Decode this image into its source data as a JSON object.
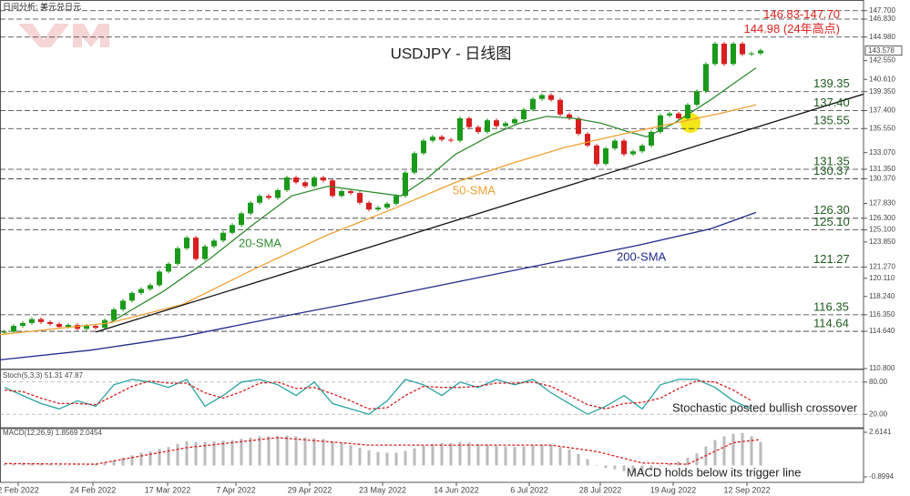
{
  "header": "日间分析: 美元兑日元",
  "chart_data": [
    {
      "type": "candlestick",
      "title": "USDJPY - 日线图",
      "xlim": [
        -0.5,
        94.3
      ],
      "xticks": [
        {
          "value": 1.5,
          "label": "2 Feb 2022"
        },
        {
          "value": 9.7,
          "label": "24 Feb 2022"
        },
        {
          "value": 17.9,
          "label": "17 Mar 2022"
        },
        {
          "value": 25.4,
          "label": "7 Apr 2022"
        },
        {
          "value": 33.5,
          "label": "29 Apr 2022"
        },
        {
          "value": 41.5,
          "label": "23 May 2022"
        },
        {
          "value": 49.6,
          "label": "14 Jun 2022"
        },
        {
          "value": 57.6,
          "label": "6 Jul 2022"
        },
        {
          "value": 65.4,
          "label": "28 Jul 2022"
        },
        {
          "value": 73.4,
          "label": "19 Aug 2022"
        },
        {
          "value": 81.5,
          "label": "12 Sep 2022"
        }
      ],
      "ylim": [
        110.8,
        148.8
      ],
      "yticks": [
        {
          "value": 147.7,
          "label": "147.700"
        },
        {
          "value": 146.83,
          "label": "146.830"
        },
        {
          "value": 144.98,
          "label": "144.980"
        },
        {
          "value": 142.55,
          "label": "142.550"
        },
        {
          "value": 140.61,
          "label": "140.610"
        },
        {
          "value": 139.35,
          "label": "139.350"
        },
        {
          "value": 137.4,
          "label": "137.400"
        },
        {
          "value": 135.55,
          "label": "135.550"
        },
        {
          "value": 133.07,
          "label": "133.070"
        },
        {
          "value": 131.35,
          "label": "131.350"
        },
        {
          "value": 130.37,
          "label": "130.370"
        },
        {
          "value": 127.83,
          "label": "127.830"
        },
        {
          "value": 126.3,
          "label": "126.300"
        },
        {
          "value": 125.1,
          "label": "125.100"
        },
        {
          "value": 123.85,
          "label": "123.850"
        },
        {
          "value": 121.27,
          "label": "121.270"
        },
        {
          "value": 120.11,
          "label": "120.110"
        },
        {
          "value": 118.24,
          "label": "118.240"
        },
        {
          "value": 116.35,
          "label": "116.350"
        },
        {
          "value": 114.64,
          "label": "114.640"
        },
        {
          "value": 110.8,
          "label": "110.800"
        }
      ],
      "current": {
        "value": 143.578,
        "label": "143.578"
      },
      "up_color": "#1a9a1a",
      "down_color": "#d81e1e",
      "x": [
        0,
        1,
        2,
        3,
        4,
        5,
        6,
        7,
        8,
        9,
        10,
        11,
        12,
        13,
        14,
        15,
        16,
        17,
        18,
        19,
        20,
        21,
        22,
        23,
        24,
        25,
        26,
        27,
        28,
        29,
        30,
        31,
        32,
        33,
        34,
        35,
        36,
        37,
        38,
        39,
        40,
        41,
        42,
        43,
        44,
        45,
        46,
        47,
        48,
        49,
        50,
        51,
        52,
        53,
        54,
        55,
        56,
        57,
        58,
        59,
        60,
        61,
        62,
        63,
        64,
        65,
        66,
        67,
        68,
        69,
        70,
        71,
        72,
        73,
        74,
        75,
        76,
        77,
        78,
        79,
        80,
        81,
        82,
        83
      ],
      "close": [
        114.6,
        115.2,
        115.5,
        115.9,
        115.6,
        115.4,
        115.1,
        115.3,
        114.9,
        115.2,
        115.0,
        115.8,
        116.9,
        117.8,
        118.6,
        119.0,
        119.4,
        120.8,
        121.6,
        123.2,
        124.3,
        122.1,
        123.4,
        124.0,
        124.8,
        125.6,
        126.8,
        127.9,
        128.6,
        128.4,
        129.2,
        130.5,
        130.0,
        129.6,
        130.5,
        130.2,
        128.6,
        129.1,
        128.9,
        127.9,
        127.2,
        127.4,
        127.8,
        128.6,
        131.0,
        133.0,
        134.3,
        134.7,
        134.4,
        134.3,
        136.6,
        135.7,
        135.2,
        136.4,
        135.8,
        136.1,
        136.5,
        137.5,
        138.6,
        139.0,
        138.5,
        137.0,
        136.6,
        135.0,
        133.8,
        131.9,
        133.5,
        134.3,
        132.9,
        133.2,
        133.8,
        135.2,
        136.9,
        137.1,
        136.6,
        138.0,
        139.4,
        142.2,
        144.3,
        142.2,
        144.3,
        143.2,
        143.3,
        143.6
      ],
      "series": [
        {
          "name": "20-SMA",
          "color": "#2e8b2e",
          "x": [
            11.5,
            17.5,
            22.5,
            27.5,
            31.5,
            35.5,
            39.5,
            43.5,
            46.5,
            49.5,
            53.5,
            56.5,
            59.5,
            62.5,
            65.5,
            68.5,
            70.5,
            73.5,
            77.5,
            80.5,
            82.5
          ],
          "values": [
            115.5,
            118.8,
            122.1,
            125.8,
            128.6,
            129.6,
            129.1,
            128.6,
            130.5,
            132.9,
            134.9,
            136.1,
            136.8,
            136.6,
            136.1,
            135.2,
            134.7,
            136.1,
            138.5,
            140.5,
            141.8
          ]
        },
        {
          "name": "50-SMA",
          "color": "#f0a030",
          "x": [
            -0.5,
            11.5,
            19.5,
            27.5,
            35.5,
            42.5,
            49.5,
            55.5,
            61.5,
            67.5,
            73.5,
            78.5,
            82.5
          ],
          "values": [
            114.3,
            115.5,
            117.4,
            121.1,
            124.6,
            127.2,
            130.0,
            131.9,
            133.6,
            134.9,
            136.1,
            137.1,
            138.0
          ]
        },
        {
          "name": "200-SMA",
          "color": "#1f2a8c",
          "x": [
            -0.5,
            9.5,
            19.5,
            29.5,
            39.5,
            49.5,
            59.5,
            69.5,
            77.5,
            82.5
          ],
          "values": [
            111.7,
            112.7,
            114.1,
            116.0,
            117.8,
            119.7,
            121.6,
            123.5,
            125.2,
            126.9
          ]
        },
        {
          "color": "#111111",
          "x": [
            10,
            94.3
          ],
          "values": [
            114.56,
            139.1
          ]
        }
      ],
      "levels": [
        {
          "value": 147.7,
          "label": "146.83-147.70",
          "color": "#e0201b"
        },
        {
          "value": 146.83,
          "label": null,
          "color": "#e0201b"
        },
        {
          "value": 144.98,
          "label": "144.98 (24年高点)",
          "color": "#e0201b"
        },
        {
          "value": 139.35,
          "label": "139.35",
          "color": "#1e5b1e"
        },
        {
          "value": 137.4,
          "label": "137.40",
          "color": "#1e5b1e"
        },
        {
          "value": 135.55,
          "label": "135.55",
          "color": "#1e5b1e"
        },
        {
          "value": 131.35,
          "label": "131.35",
          "color": "#1e5b1e"
        },
        {
          "value": 130.37,
          "label": "130.37",
          "color": "#1e5b1e"
        },
        {
          "value": 126.3,
          "label": "126.30",
          "color": "#1e5b1e"
        },
        {
          "value": 125.1,
          "label": "125.10",
          "color": "#1e5b1e"
        },
        {
          "value": 121.27,
          "label": "121.27",
          "color": "#1e5b1e"
        },
        {
          "value": 116.35,
          "label": "116.35",
          "color": "#1e5b1e"
        },
        {
          "value": 114.64,
          "label": "114.64",
          "color": "#1e5b1e"
        }
      ]
    },
    {
      "type": "line",
      "label": "Stoch(5,3,3) 51.31 47.87",
      "annotation": "Stochastic posted bullish crossover",
      "ylim": [
        0,
        100
      ],
      "yticks": [
        {
          "value": 80,
          "label": "80.00"
        },
        {
          "value": 20,
          "label": "20.00"
        }
      ],
      "series": [
        {
          "color": "#2aa3a3",
          "x": [
            0,
            2,
            4,
            6,
            8,
            10,
            12,
            14,
            16,
            18,
            20,
            22,
            24,
            26,
            28,
            30,
            32,
            34,
            36,
            38,
            40,
            42,
            44,
            46,
            48,
            50,
            52,
            54,
            56,
            58,
            60,
            62,
            64,
            66,
            68,
            70,
            72,
            74,
            76,
            78,
            80,
            82
          ],
          "values": [
            70,
            55,
            40,
            30,
            45,
            35,
            75,
            85,
            80,
            70,
            85,
            35,
            55,
            80,
            85,
            75,
            55,
            80,
            40,
            30,
            20,
            45,
            85,
            75,
            55,
            80,
            70,
            85,
            75,
            85,
            60,
            40,
            20,
            35,
            55,
            30,
            75,
            85,
            85,
            70,
            45,
            30
          ]
        },
        {
          "color": "#d81e1e",
          "dashed": true,
          "x": [
            0,
            2,
            4,
            6,
            8,
            10,
            12,
            14,
            16,
            18,
            20,
            22,
            24,
            26,
            28,
            30,
            32,
            34,
            36,
            38,
            40,
            42,
            44,
            46,
            48,
            50,
            52,
            54,
            56,
            58,
            60,
            62,
            64,
            66,
            68,
            70,
            72,
            74,
            76,
            78,
            80,
            82
          ],
          "values": [
            65,
            62,
            50,
            40,
            40,
            38,
            55,
            72,
            82,
            78,
            78,
            60,
            50,
            62,
            78,
            80,
            68,
            70,
            58,
            45,
            30,
            32,
            55,
            72,
            70,
            70,
            72,
            78,
            78,
            80,
            72,
            55,
            38,
            30,
            40,
            42,
            50,
            68,
            82,
            80,
            65,
            45
          ]
        }
      ]
    },
    {
      "type": "bar",
      "label": "MACD(12,26,9) 1.8569 2.0454",
      "annotation": "MACD holds below its trigger line",
      "ylim": [
        -1.33,
        2.83
      ],
      "yticks": [
        {
          "value": 2.6141,
          "label": "2.6141"
        },
        {
          "value": -0.8994,
          "label": "-0.8994"
        }
      ],
      "color": "#bbbbbb",
      "values": [
        0.1,
        0.15,
        0.2,
        0.2,
        0.15,
        0.1,
        0.05,
        0.05,
        0.0,
        0.05,
        0.1,
        0.2,
        0.4,
        0.6,
        0.8,
        1.0,
        1.1,
        1.3,
        1.45,
        1.7,
        1.9,
        1.85,
        1.85,
        1.9,
        1.95,
        2.0,
        2.1,
        2.2,
        2.3,
        2.3,
        2.3,
        2.35,
        2.3,
        2.2,
        2.15,
        2.1,
        1.9,
        1.75,
        1.6,
        1.4,
        1.2,
        1.05,
        1.0,
        1.0,
        1.15,
        1.35,
        1.55,
        1.7,
        1.75,
        1.75,
        1.85,
        1.8,
        1.7,
        1.65,
        1.55,
        1.5,
        1.45,
        1.5,
        1.6,
        1.65,
        1.6,
        1.45,
        1.25,
        0.9,
        0.5,
        0.0,
        -0.2,
        -0.3,
        -0.45,
        -0.55,
        -0.5,
        -0.3,
        -0.05,
        0.15,
        0.3,
        0.6,
        0.95,
        1.5,
        2.0,
        2.3,
        2.5,
        2.55,
        2.3,
        1.86
      ],
      "series": [
        {
          "color": "#d81e1e",
          "dashed": true,
          "x": [
            0,
            10,
            20,
            30,
            40,
            50,
            60,
            65,
            70,
            75,
            80,
            83
          ],
          "values": [
            0.15,
            0.1,
            1.4,
            2.2,
            1.6,
            1.6,
            1.6,
            1.1,
            0.2,
            0.1,
            1.8,
            2.05
          ]
        }
      ]
    }
  ]
}
